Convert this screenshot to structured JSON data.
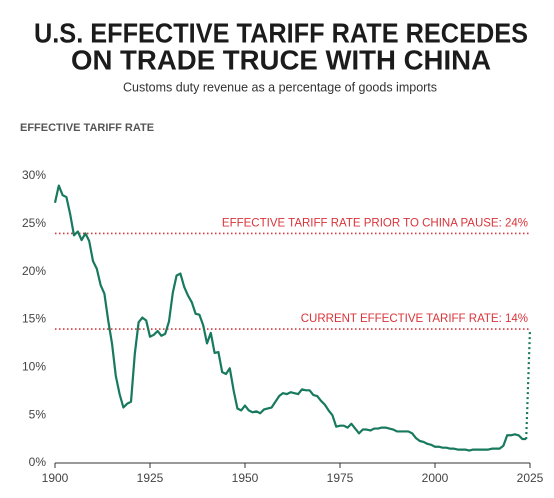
{
  "chart_data": {
    "type": "line",
    "title": [
      "U.S. EFFECTIVE TARIFF RATE RECEDES",
      "ON TRADE TRUCE WITH CHINA"
    ],
    "subtitle": "Customs duty revenue as a percentage of goods imports",
    "y_label": "EFFECTIVE TARIFF RATE",
    "color": "#17795d",
    "x": [
      1900,
      1901,
      1902,
      1903,
      1904,
      1905,
      1906,
      1907,
      1908,
      1909,
      1910,
      1911,
      1912,
      1913,
      1914,
      1915,
      1916,
      1917,
      1918,
      1919,
      1920,
      1921,
      1922,
      1923,
      1924,
      1925,
      1926,
      1927,
      1928,
      1929,
      1930,
      1931,
      1932,
      1933,
      1934,
      1935,
      1936,
      1937,
      1938,
      1939,
      1940,
      1941,
      1942,
      1943,
      1944,
      1945,
      1946,
      1947,
      1948,
      1949,
      1950,
      1951,
      1952,
      1953,
      1954,
      1955,
      1956,
      1957,
      1958,
      1959,
      1960,
      1961,
      1962,
      1963,
      1964,
      1965,
      1966,
      1967,
      1968,
      1969,
      1970,
      1971,
      1972,
      1973,
      1974,
      1975,
      1976,
      1977,
      1978,
      1979,
      1980,
      1981,
      1982,
      1983,
      1984,
      1985,
      1986,
      1987,
      1988,
      1989,
      1990,
      1991,
      1992,
      1993,
      1994,
      1995,
      1996,
      1997,
      1998,
      1999,
      2000,
      2001,
      2002,
      2003,
      2004,
      2005,
      2006,
      2007,
      2008,
      2009,
      2010,
      2011,
      2012,
      2013,
      2014,
      2015,
      2016,
      2017,
      2018,
      2019,
      2020,
      2021,
      2022,
      2023,
      2024
    ],
    "values": [
      27.2,
      29,
      28,
      27.8,
      26,
      23.8,
      24.2,
      23.3,
      24,
      23.2,
      21.1,
      20.3,
      18.6,
      17.7,
      14.9,
      12.5,
      9.1,
      7.2,
      5.8,
      6.2,
      6.4,
      11.4,
      14.7,
      15.2,
      14.9,
      13.2,
      13.4,
      13.8,
      13.3,
      13.5,
      14.8,
      17.8,
      19.6,
      19.8,
      18.4,
      17.5,
      16.8,
      15.6,
      15.5,
      14.4,
      12.5,
      13.6,
      11.5,
      11.6,
      9.5,
      9.3,
      9.9,
      7.6,
      5.7,
      5.5,
      6.0,
      5.5,
      5.3,
      5.4,
      5.2,
      5.6,
      5.7,
      5.8,
      6.4,
      7.0,
      7.3,
      7.2,
      7.4,
      7.3,
      7.2,
      7.7,
      7.6,
      7.6,
      7.1,
      7.0,
      6.5,
      6.1,
      5.5,
      5.0,
      3.8,
      3.9,
      3.9,
      3.7,
      4.1,
      3.6,
      3.1,
      3.5,
      3.5,
      3.4,
      3.6,
      3.6,
      3.7,
      3.7,
      3.6,
      3.5,
      3.3,
      3.3,
      3.3,
      3.3,
      3.1,
      2.6,
      2.3,
      2.2,
      2.0,
      1.9,
      1.7,
      1.7,
      1.6,
      1.6,
      1.5,
      1.5,
      1.4,
      1.4,
      1.4,
      1.3,
      1.4,
      1.4,
      1.4,
      1.4,
      1.4,
      1.5,
      1.5,
      1.5,
      1.8,
      2.9,
      2.9,
      3.0,
      2.9,
      2.5,
      2.5
    ],
    "extension": {
      "x": [
        2025
      ],
      "values": [
        14
      ],
      "style": "dotted"
    },
    "reference_lines": [
      {
        "value": 24,
        "label": "EFFECTIVE TARIFF RATE PRIOR TO CHINA PAUSE: 24%",
        "color": "#d9343a"
      },
      {
        "value": 14,
        "label": "CURRENT EFFECTIVE TARIFF RATE: 14%",
        "color": "#d9343a"
      }
    ],
    "xlim": [
      1900,
      2025
    ],
    "xticks": [
      1900,
      1925,
      1950,
      1975,
      2000,
      2025
    ],
    "ylim": [
      0,
      30
    ],
    "yticks": [
      {
        "value": 0,
        "label": "0%"
      },
      {
        "value": 5,
        "label": "5%"
      },
      {
        "value": 10,
        "label": "10%"
      },
      {
        "value": 15,
        "label": "15%"
      },
      {
        "value": 20,
        "label": "20%"
      },
      {
        "value": 25,
        "label": "25%"
      },
      {
        "value": 30,
        "label": "30%"
      }
    ],
    "grid": false
  }
}
